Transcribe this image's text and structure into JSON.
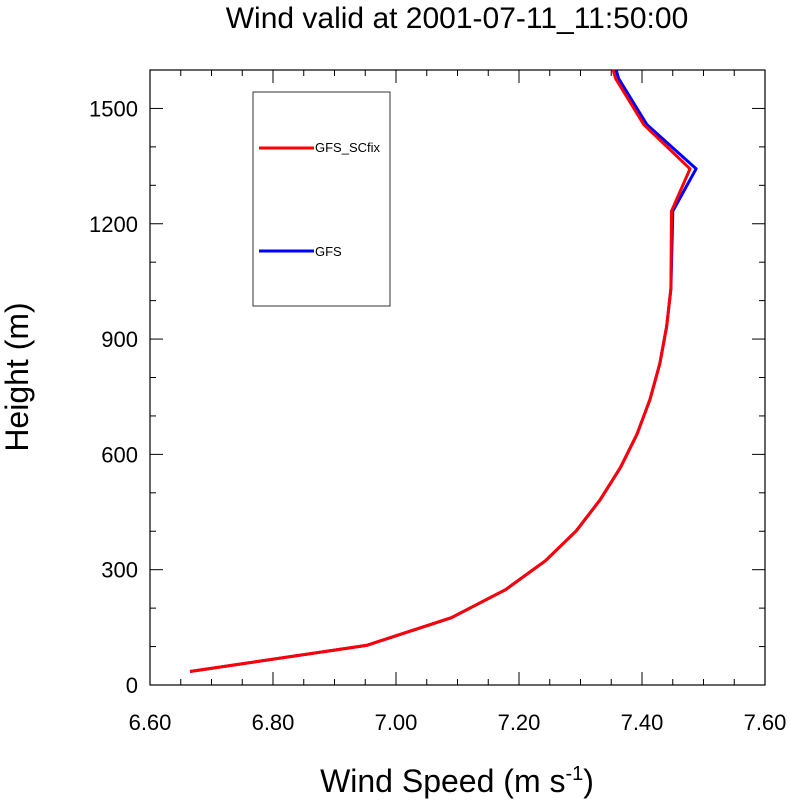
{
  "chart_data": {
    "type": "line",
    "title": "Wind valid at 2001-07-11_11:50:00",
    "xlabel_main": "Wind Speed (m s",
    "xlabel_sup": "-1",
    "xlabel_close": ")",
    "ylabel": "Height (m)",
    "xlim": [
      6.6,
      7.6
    ],
    "ylim": [
      0,
      1600
    ],
    "xticks": [
      6.6,
      6.8,
      7.0,
      7.2,
      7.4,
      7.6
    ],
    "xtick_labels": [
      "6.60",
      "6.80",
      "7.00",
      "7.20",
      "7.40",
      "7.60"
    ],
    "yticks": [
      0,
      300,
      600,
      900,
      1200,
      1500
    ],
    "ytick_labels": [
      "0",
      "300",
      "600",
      "900",
      "1200",
      "1500"
    ],
    "legend_location": "top-left",
    "series": [
      {
        "name": "GFS",
        "color": "#0000ff",
        "x": [
          6.665,
          6.952,
          7.09,
          7.178,
          7.243,
          7.293,
          7.332,
          7.365,
          7.392,
          7.413,
          7.429,
          7.44,
          7.447,
          7.45,
          7.488,
          7.408,
          7.362,
          7.358
        ],
        "y": [
          35,
          103,
          175,
          248,
          323,
          401,
          482,
          566,
          653,
          743,
          836,
          932,
          1031,
          1233,
          1343,
          1458,
          1578,
          1600
        ]
      },
      {
        "name": "GFS_SCfix",
        "color": "#ff0000",
        "x": [
          6.665,
          6.952,
          7.09,
          7.178,
          7.243,
          7.293,
          7.332,
          7.365,
          7.392,
          7.413,
          7.429,
          7.44,
          7.447,
          7.448,
          7.478,
          7.403,
          7.357,
          7.353
        ],
        "y": [
          35,
          103,
          175,
          248,
          323,
          401,
          482,
          566,
          653,
          743,
          836,
          932,
          1031,
          1233,
          1343,
          1458,
          1578,
          1600
        ]
      }
    ]
  }
}
